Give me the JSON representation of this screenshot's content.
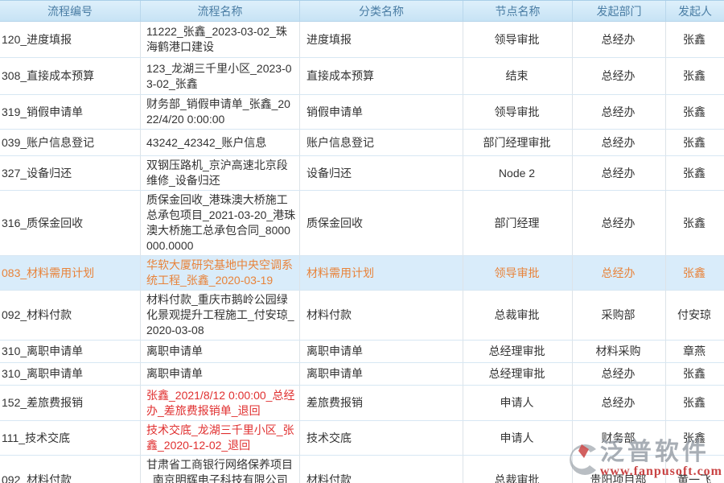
{
  "table": {
    "columns": [
      {
        "key": "code",
        "label": "流程编号",
        "align": "left"
      },
      {
        "key": "name",
        "label": "流程名称",
        "align": "left"
      },
      {
        "key": "category",
        "label": "分类名称",
        "align": "left"
      },
      {
        "key": "node",
        "label": "节点名称",
        "align": "center"
      },
      {
        "key": "dept",
        "label": "发起部门",
        "align": "center"
      },
      {
        "key": "user",
        "label": "发起人",
        "align": "center"
      }
    ],
    "rows": [
      {
        "code": "120_进度填报",
        "name": "11222_张鑫_2023-03-02_珠海鹤港口建设",
        "category": "进度填报",
        "node": "领导审批",
        "dept": "总经办",
        "user": "张鑫",
        "highlight": false,
        "name_red": false
      },
      {
        "code": "308_直接成本预算",
        "name": "123_龙湖三千里小区_2023-03-02_张鑫",
        "category": "直接成本预算",
        "node": "结束",
        "dept": "总经办",
        "user": "张鑫",
        "highlight": false,
        "name_red": false
      },
      {
        "code": "319_销假申请单",
        "name": "财务部_销假申请单_张鑫_2022/4/20 0:00:00",
        "category": "销假申请单",
        "node": "领导审批",
        "dept": "总经办",
        "user": "张鑫",
        "highlight": false,
        "name_red": false
      },
      {
        "code": "039_账户信息登记",
        "name": "43242_42342_账户信息",
        "category": "账户信息登记",
        "node": "部门经理审批",
        "dept": "总经办",
        "user": "张鑫",
        "highlight": false,
        "name_red": false
      },
      {
        "code": "327_设备归还",
        "name": "双钢压路机_京沪高速北京段维修_设备归还",
        "category": "设备归还",
        "node": "Node 2",
        "dept": "总经办",
        "user": "张鑫",
        "highlight": false,
        "name_red": false
      },
      {
        "code": "316_质保金回收",
        "name": "质保金回收_港珠澳大桥施工总承包项目_2021-03-20_港珠澳大桥施工总承包合同_8000000.0000",
        "category": "质保金回收",
        "node": "部门经理",
        "dept": "总经办",
        "user": "张鑫",
        "highlight": false,
        "name_red": false
      },
      {
        "code": "083_材料需用计划",
        "name": "华软大厦研究基地中央空调系统工程_张鑫_2020-03-19",
        "category": "材料需用计划",
        "node": "领导审批",
        "dept": "总经办",
        "user": "张鑫",
        "highlight": true,
        "name_red": false
      },
      {
        "code": "092_材料付款",
        "name": "材料付款_重庆市鹅岭公园绿化景观提升工程施工_付安琼_2020-03-08",
        "category": "材料付款",
        "node": "总裁审批",
        "dept": "采购部",
        "user": "付安琼",
        "highlight": false,
        "name_red": false
      },
      {
        "code": "310_离职申请单",
        "name": "离职申请单",
        "category": "离职申请单",
        "node": "总经理审批",
        "dept": "材料采购",
        "user": "章燕",
        "highlight": false,
        "name_red": false
      },
      {
        "code": "310_离职申请单",
        "name": "离职申请单",
        "category": "离职申请单",
        "node": "总经理审批",
        "dept": "总经办",
        "user": "张鑫",
        "highlight": false,
        "name_red": false
      },
      {
        "code": "152_差旅费报销",
        "name": "张鑫_2021/8/12 0:00:00_总经办_差旅费报销单_退回",
        "category": "差旅费报销",
        "node": "申请人",
        "dept": "总经办",
        "user": "张鑫",
        "highlight": false,
        "name_red": true
      },
      {
        "code": "111_技术交底",
        "name": "技术交底_龙湖三千里小区_张鑫_2020-12-02_退回",
        "category": "技术交底",
        "node": "申请人",
        "dept": "财务部",
        "user": "张鑫",
        "highlight": false,
        "name_red": true
      },
      {
        "code": "092_材料付款",
        "name": "甘肃省工商银行网络保养项目_南京明辉电子科技有限公司_薛保丰",
        "category": "材料付款",
        "node": "总裁审批",
        "dept": "贵阳项目部",
        "user": "黄一飞",
        "highlight": false,
        "name_red": false
      }
    ]
  },
  "watermark": {
    "brand": "泛普软件",
    "url": "www.fanpusoft.com"
  },
  "colors": {
    "header_text": "#4a7da4",
    "header_bg_top": "#def0fb",
    "header_bg_bottom": "#c7e3f5",
    "highlight_bg": "#d9ecfa",
    "highlight_text": "#e8833a",
    "alert_text": "#e03030",
    "body_text": "#333333",
    "watermark_gray": "#939aa3",
    "watermark_red": "#c43030"
  }
}
